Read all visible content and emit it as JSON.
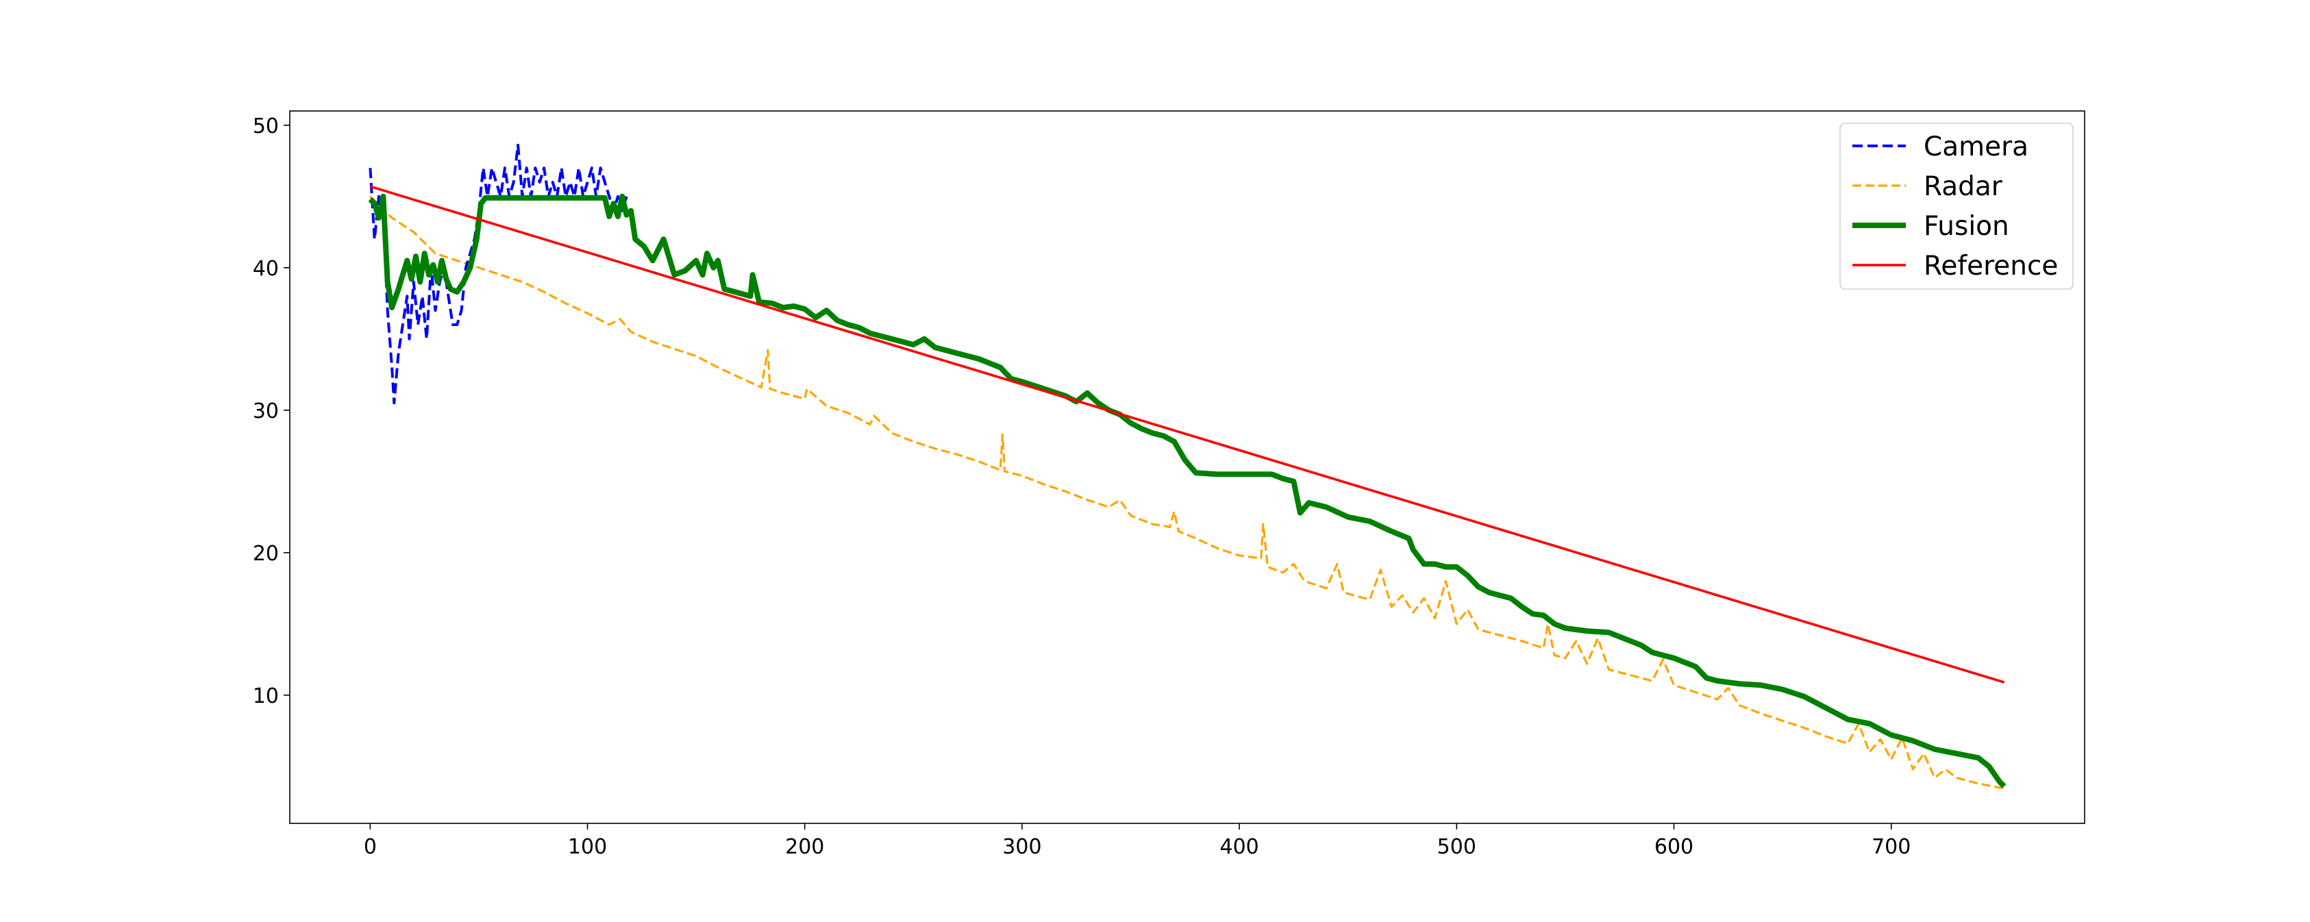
{
  "chart_data": {
    "type": "line",
    "title": "",
    "xlabel": "",
    "ylabel": "",
    "xlim": [
      -37,
      789
    ],
    "ylim": [
      1,
      51
    ],
    "x_ticks": [
      0,
      100,
      200,
      300,
      400,
      500,
      600,
      700
    ],
    "y_ticks": [
      10,
      20,
      30,
      40,
      50
    ],
    "x_tick_labels": [
      "0",
      "100",
      "200",
      "300",
      "400",
      "500",
      "600",
      "700"
    ],
    "y_tick_labels": [
      "10",
      "20",
      "30",
      "40",
      "50"
    ],
    "grid": false,
    "legend_position": "top-right",
    "series": [
      {
        "name": "Camera",
        "color": "#0000ff",
        "style": "dashed",
        "points": [
          [
            0,
            47
          ],
          [
            2,
            42
          ],
          [
            4,
            45
          ],
          [
            6,
            44
          ],
          [
            8,
            37
          ],
          [
            10,
            33
          ],
          [
            11,
            30.5
          ],
          [
            13,
            34
          ],
          [
            15,
            36
          ],
          [
            17,
            38
          ],
          [
            18,
            35
          ],
          [
            20,
            39
          ],
          [
            22,
            36
          ],
          [
            24,
            38
          ],
          [
            26,
            35
          ],
          [
            28,
            40
          ],
          [
            30,
            37
          ],
          [
            32,
            39
          ],
          [
            34,
            40
          ],
          [
            36,
            38
          ],
          [
            38,
            36
          ],
          [
            40,
            36
          ],
          [
            42,
            37
          ],
          [
            44,
            40
          ],
          [
            46,
            41
          ],
          [
            48,
            42
          ],
          [
            50,
            44
          ],
          [
            52,
            47
          ],
          [
            54,
            45
          ],
          [
            56,
            47
          ],
          [
            58,
            46
          ],
          [
            60,
            45
          ],
          [
            62,
            47
          ],
          [
            64,
            45
          ],
          [
            66,
            46
          ],
          [
            68,
            48.6
          ],
          [
            70,
            45
          ],
          [
            72,
            47
          ],
          [
            74,
            45
          ],
          [
            76,
            47
          ],
          [
            78,
            46
          ],
          [
            80,
            47
          ],
          [
            82,
            45
          ],
          [
            84,
            46
          ],
          [
            86,
            45
          ],
          [
            88,
            47
          ],
          [
            90,
            45
          ],
          [
            92,
            46
          ],
          [
            94,
            45
          ],
          [
            96,
            47
          ],
          [
            98,
            45
          ],
          [
            100,
            46
          ],
          [
            102,
            47
          ],
          [
            104,
            45
          ],
          [
            106,
            47
          ],
          [
            108,
            46
          ],
          [
            110,
            45
          ],
          [
            112,
            44
          ],
          [
            114,
            45
          ],
          [
            116,
            44
          ],
          [
            118,
            45
          ]
        ]
      },
      {
        "name": "Radar",
        "color": "#ffa500",
        "style": "dashed",
        "points": [
          [
            0,
            45
          ],
          [
            10,
            43.5
          ],
          [
            20,
            42.5
          ],
          [
            30,
            41
          ],
          [
            40,
            40.5
          ],
          [
            50,
            40
          ],
          [
            60,
            39.5
          ],
          [
            70,
            39
          ],
          [
            80,
            38.3
          ],
          [
            90,
            37.5
          ],
          [
            100,
            36.8
          ],
          [
            110,
            36
          ],
          [
            115,
            36.4
          ],
          [
            120,
            35.5
          ],
          [
            130,
            34.8
          ],
          [
            140,
            34.3
          ],
          [
            150,
            33.8
          ],
          [
            160,
            33
          ],
          [
            170,
            32.3
          ],
          [
            180,
            31.6
          ],
          [
            183,
            34.2
          ],
          [
            184,
            31.5
          ],
          [
            190,
            31.2
          ],
          [
            200,
            30.8
          ],
          [
            201,
            31.5
          ],
          [
            210,
            30.3
          ],
          [
            220,
            29.8
          ],
          [
            230,
            29
          ],
          [
            232,
            29.6
          ],
          [
            240,
            28.4
          ],
          [
            250,
            27.8
          ],
          [
            260,
            27.3
          ],
          [
            270,
            26.9
          ],
          [
            280,
            26.4
          ],
          [
            290,
            25.8
          ],
          [
            291,
            28.3
          ],
          [
            292,
            25.7
          ],
          [
            300,
            25.4
          ],
          [
            310,
            24.8
          ],
          [
            320,
            24.3
          ],
          [
            330,
            23.7
          ],
          [
            340,
            23.2
          ],
          [
            345,
            23.7
          ],
          [
            350,
            22.6
          ],
          [
            360,
            22
          ],
          [
            368,
            21.8
          ],
          [
            370,
            22.9
          ],
          [
            372,
            21.5
          ],
          [
            380,
            21
          ],
          [
            390,
            20.3
          ],
          [
            400,
            19.8
          ],
          [
            410,
            19.6
          ],
          [
            411,
            22
          ],
          [
            413,
            19
          ],
          [
            420,
            18.6
          ],
          [
            425,
            19.2
          ],
          [
            430,
            18
          ],
          [
            440,
            17.5
          ],
          [
            445,
            19.2
          ],
          [
            448,
            17.2
          ],
          [
            460,
            16.7
          ],
          [
            465,
            18.8
          ],
          [
            470,
            16.2
          ],
          [
            475,
            17
          ],
          [
            480,
            15.8
          ],
          [
            485,
            16.8
          ],
          [
            490,
            15.4
          ],
          [
            495,
            18
          ],
          [
            500,
            15
          ],
          [
            505,
            16
          ],
          [
            510,
            14.6
          ],
          [
            520,
            14.2
          ],
          [
            530,
            13.8
          ],
          [
            540,
            13.3
          ],
          [
            542,
            15
          ],
          [
            545,
            12.8
          ],
          [
            550,
            12.6
          ],
          [
            555,
            13.8
          ],
          [
            560,
            12.2
          ],
          [
            565,
            14
          ],
          [
            570,
            11.8
          ],
          [
            580,
            11.4
          ],
          [
            590,
            11
          ],
          [
            595,
            12.5
          ],
          [
            600,
            10.7
          ],
          [
            610,
            10.2
          ],
          [
            620,
            9.7
          ],
          [
            625,
            10.5
          ],
          [
            630,
            9.3
          ],
          [
            640,
            8.7
          ],
          [
            650,
            8.2
          ],
          [
            660,
            7.7
          ],
          [
            670,
            7.1
          ],
          [
            680,
            6.6
          ],
          [
            685,
            8
          ],
          [
            690,
            6
          ],
          [
            695,
            6.9
          ],
          [
            700,
            5.5
          ],
          [
            705,
            7
          ],
          [
            710,
            4.8
          ],
          [
            715,
            5.9
          ],
          [
            720,
            4.2
          ],
          [
            725,
            4.8
          ],
          [
            730,
            4.2
          ],
          [
            740,
            3.8
          ],
          [
            750,
            3.5
          ],
          [
            752,
            3.5
          ]
        ]
      },
      {
        "name": "Fusion",
        "color": "#008000",
        "style": "solid",
        "points": [
          [
            0,
            44.8
          ],
          [
            2,
            44.5
          ],
          [
            4,
            43.5
          ],
          [
            6,
            45
          ],
          [
            8,
            39
          ],
          [
            10,
            37.2
          ],
          [
            13,
            38.5
          ],
          [
            15,
            39.5
          ],
          [
            17,
            40.5
          ],
          [
            19,
            39.2
          ],
          [
            21,
            40.8
          ],
          [
            23,
            39
          ],
          [
            25,
            41
          ],
          [
            27,
            39.5
          ],
          [
            29,
            40.2
          ],
          [
            31,
            39
          ],
          [
            33,
            40.5
          ],
          [
            35,
            39.2
          ],
          [
            37,
            38.5
          ],
          [
            40,
            38.3
          ],
          [
            43,
            39
          ],
          [
            46,
            40
          ],
          [
            49,
            42
          ],
          [
            51,
            44.5
          ],
          [
            53,
            44.9
          ],
          [
            60,
            44.9
          ],
          [
            70,
            44.9
          ],
          [
            80,
            44.9
          ],
          [
            90,
            44.9
          ],
          [
            100,
            44.9
          ],
          [
            108,
            44.9
          ],
          [
            110,
            43.6
          ],
          [
            112,
            44.5
          ],
          [
            114,
            43.6
          ],
          [
            116,
            45
          ],
          [
            118,
            43.7
          ],
          [
            120,
            44
          ],
          [
            122,
            42
          ],
          [
            126,
            41.5
          ],
          [
            130,
            40.5
          ],
          [
            135,
            42
          ],
          [
            138,
            40.5
          ],
          [
            140,
            39.5
          ],
          [
            145,
            39.8
          ],
          [
            150,
            40.5
          ],
          [
            153,
            39.5
          ],
          [
            155,
            41
          ],
          [
            158,
            40
          ],
          [
            160,
            40.5
          ],
          [
            163,
            38.5
          ],
          [
            168,
            38.3
          ],
          [
            175,
            38
          ],
          [
            176,
            39.5
          ],
          [
            179,
            37.6
          ],
          [
            185,
            37.5
          ],
          [
            190,
            37.2
          ],
          [
            195,
            37.3
          ],
          [
            200,
            37.1
          ],
          [
            205,
            36.5
          ],
          [
            210,
            37
          ],
          [
            215,
            36.3
          ],
          [
            220,
            36
          ],
          [
            225,
            35.8
          ],
          [
            230,
            35.4
          ],
          [
            240,
            35
          ],
          [
            250,
            34.6
          ],
          [
            255,
            35
          ],
          [
            260,
            34.4
          ],
          [
            270,
            34
          ],
          [
            280,
            33.6
          ],
          [
            290,
            33
          ],
          [
            295,
            32.2
          ],
          [
            300,
            32
          ],
          [
            310,
            31.5
          ],
          [
            320,
            31
          ],
          [
            325,
            30.6
          ],
          [
            330,
            31.2
          ],
          [
            335,
            30.5
          ],
          [
            340,
            30
          ],
          [
            345,
            29.7
          ],
          [
            350,
            29.1
          ],
          [
            355,
            28.7
          ],
          [
            360,
            28.4
          ],
          [
            365,
            28.2
          ],
          [
            370,
            27.8
          ],
          [
            375,
            26.5
          ],
          [
            380,
            25.6
          ],
          [
            390,
            25.5
          ],
          [
            400,
            25.5
          ],
          [
            410,
            25.5
          ],
          [
            415,
            25.5
          ],
          [
            420,
            25.2
          ],
          [
            425,
            25
          ],
          [
            428,
            22.8
          ],
          [
            432,
            23.5
          ],
          [
            440,
            23.2
          ],
          [
            450,
            22.5
          ],
          [
            460,
            22.2
          ],
          [
            470,
            21.5
          ],
          [
            478,
            21
          ],
          [
            480,
            20.2
          ],
          [
            485,
            19.2
          ],
          [
            490,
            19.2
          ],
          [
            495,
            19
          ],
          [
            500,
            19
          ],
          [
            505,
            18.4
          ],
          [
            510,
            17.6
          ],
          [
            515,
            17.2
          ],
          [
            520,
            17
          ],
          [
            525,
            16.8
          ],
          [
            530,
            16.2
          ],
          [
            535,
            15.7
          ],
          [
            540,
            15.6
          ],
          [
            545,
            15
          ],
          [
            550,
            14.7
          ],
          [
            555,
            14.6
          ],
          [
            560,
            14.5
          ],
          [
            570,
            14.4
          ],
          [
            580,
            13.8
          ],
          [
            585,
            13.5
          ],
          [
            590,
            13
          ],
          [
            600,
            12.6
          ],
          [
            605,
            12.3
          ],
          [
            610,
            12
          ],
          [
            615,
            11.2
          ],
          [
            620,
            11
          ],
          [
            630,
            10.8
          ],
          [
            640,
            10.7
          ],
          [
            650,
            10.4
          ],
          [
            660,
            9.9
          ],
          [
            670,
            9.1
          ],
          [
            680,
            8.3
          ],
          [
            690,
            8
          ],
          [
            700,
            7.2
          ],
          [
            710,
            6.8
          ],
          [
            720,
            6.2
          ],
          [
            730,
            5.9
          ],
          [
            740,
            5.6
          ],
          [
            745,
            5
          ],
          [
            750,
            3.9
          ],
          [
            752,
            3.6
          ]
        ]
      },
      {
        "name": "Reference",
        "color": "#ff0000",
        "style": "solid",
        "points": [
          [
            0,
            45.7
          ],
          [
            752,
            10.9
          ]
        ]
      }
    ]
  }
}
